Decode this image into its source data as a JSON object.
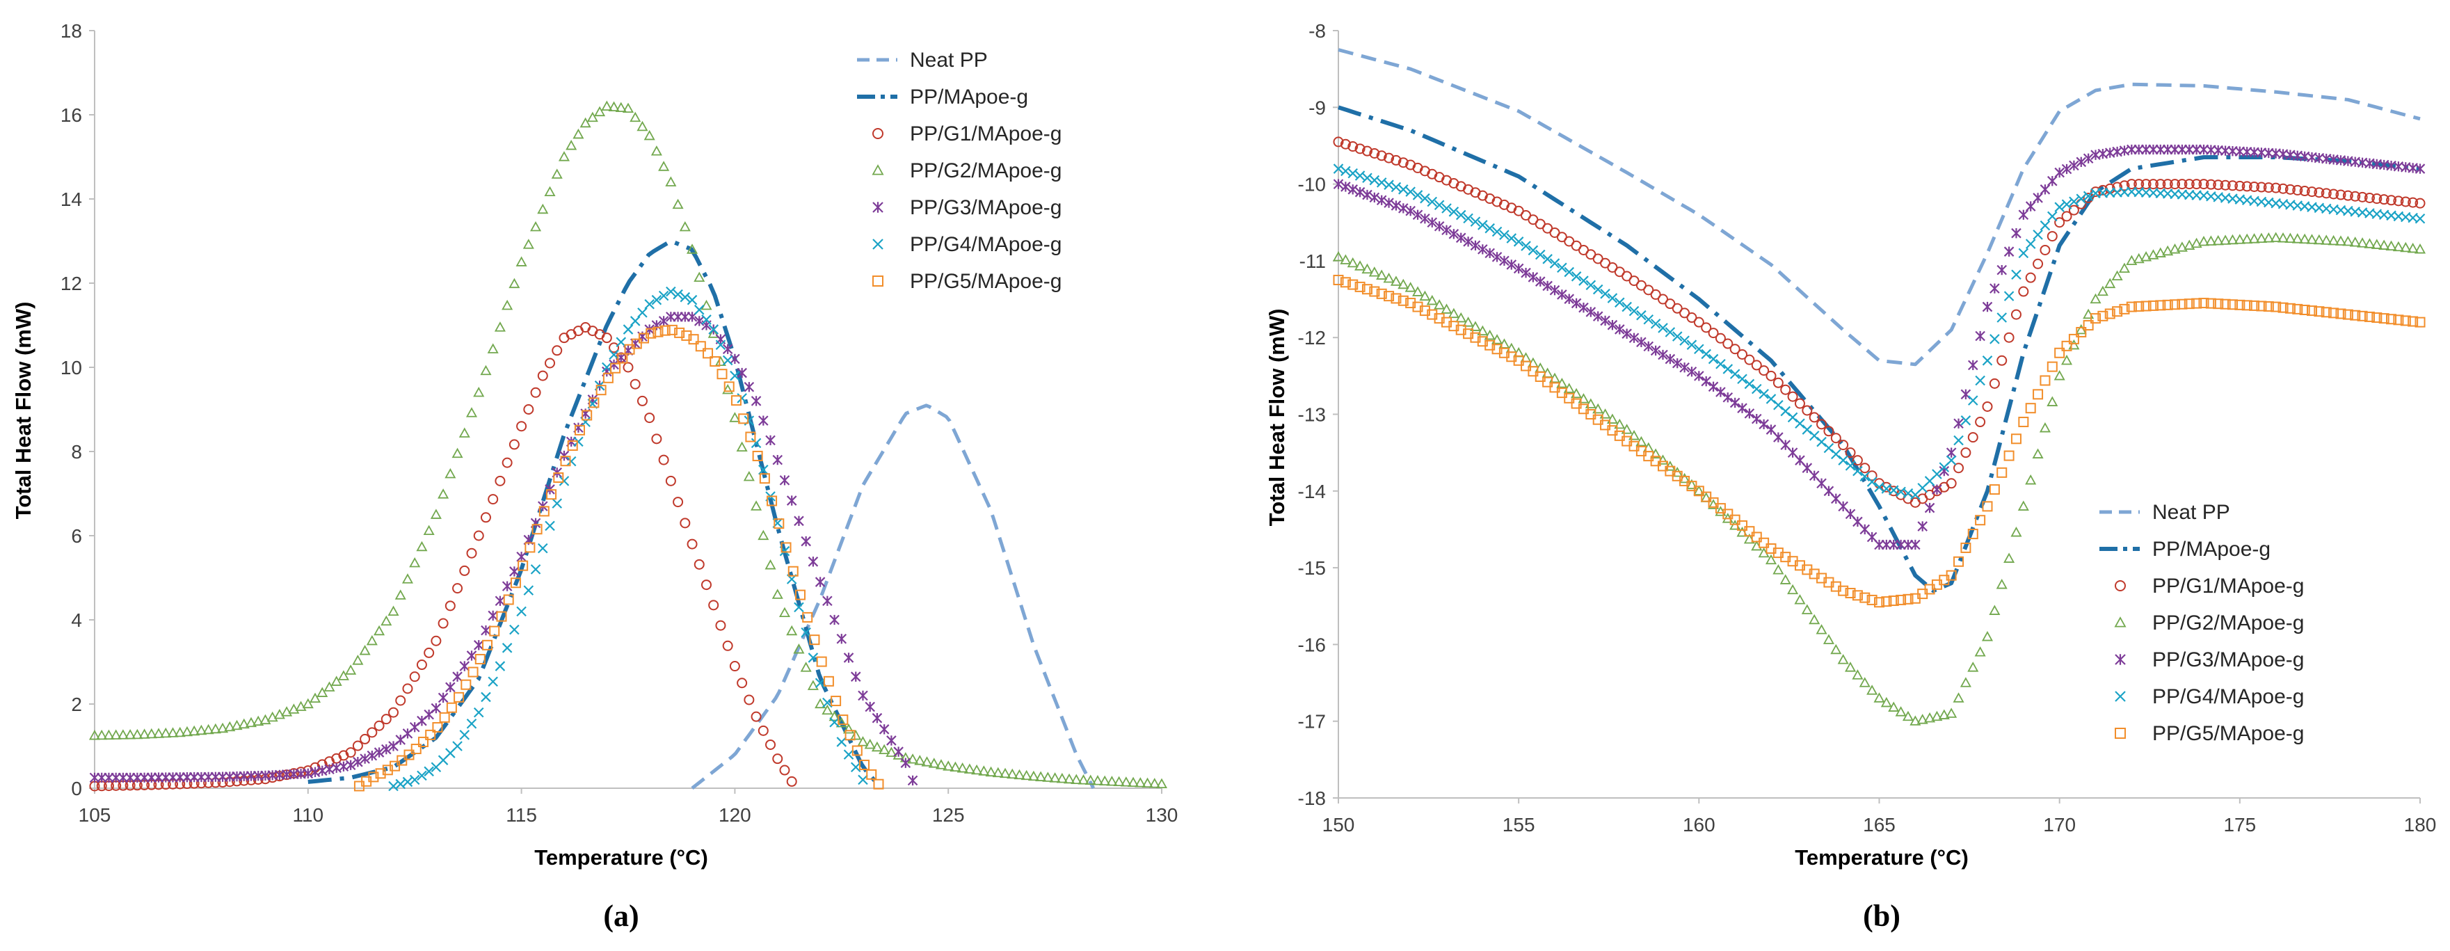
{
  "chart_data": [
    {
      "type": "scatter",
      "panel": "left",
      "caption": "(a)",
      "xlabel": "Temperature (°C)",
      "ylabel": "Total Heat Flow (mW)",
      "xlim": [
        105,
        130
      ],
      "ylim": [
        0,
        18
      ],
      "xticks": [
        105,
        110,
        115,
        120,
        125,
        130
      ],
      "yticks": [
        0,
        2,
        4,
        6,
        8,
        10,
        12,
        14,
        16,
        18
      ],
      "legend_position": "top-right",
      "series": [
        {
          "name": "Neat PP",
          "style": "dashed",
          "color": "#7EA6D4",
          "x": [
            119,
            120,
            121,
            122,
            123,
            124,
            124.5,
            125,
            126,
            127,
            128,
            128.4
          ],
          "y": [
            0,
            0.8,
            2.2,
            4.5,
            7.2,
            8.9,
            9.1,
            8.8,
            6.6,
            3.4,
            0.8,
            0
          ]
        },
        {
          "name": "PP/MApoe-g",
          "style": "dashdot",
          "color": "#1F6FA7",
          "x": [
            110,
            111,
            112,
            113,
            114,
            115,
            116,
            117,
            117.5,
            118,
            118.5,
            119,
            119.5,
            120,
            121,
            122,
            123,
            123.3
          ],
          "y": [
            0.15,
            0.25,
            0.5,
            1.2,
            2.6,
            5.2,
            8.4,
            11.0,
            12.0,
            12.7,
            13.0,
            12.8,
            11.8,
            10.2,
            6.2,
            2.6,
            0.5,
            0.15
          ]
        },
        {
          "name": "PP/G1/MApoe-g",
          "style": "circle",
          "color": "#C0392B",
          "x": [
            105,
            106,
            107,
            108,
            109,
            110,
            111,
            112,
            113,
            114,
            115,
            115.5,
            116,
            116.5,
            117,
            117.5,
            118,
            119,
            120,
            120.5,
            121,
            121.4
          ],
          "y": [
            0.05,
            0.07,
            0.1,
            0.14,
            0.22,
            0.42,
            0.85,
            1.8,
            3.5,
            6.0,
            8.6,
            9.8,
            10.7,
            10.95,
            10.7,
            10.0,
            8.8,
            5.8,
            2.9,
            1.7,
            0.7,
            0.05
          ]
        },
        {
          "name": "PP/G2/MApoe-g",
          "style": "triangle",
          "color": "#72A84E",
          "x": [
            105,
            106,
            107,
            108,
            109,
            110,
            111,
            112,
            113,
            114,
            115,
            116,
            116.5,
            117,
            117.5,
            118,
            118.5,
            119,
            120,
            121,
            122,
            123,
            124,
            125,
            126,
            127,
            128,
            129,
            130
          ],
          "y": [
            1.25,
            1.27,
            1.32,
            1.42,
            1.62,
            2.0,
            2.8,
            4.2,
            6.5,
            9.4,
            12.5,
            15.0,
            15.8,
            16.2,
            16.15,
            15.5,
            14.4,
            12.8,
            8.8,
            4.6,
            2.0,
            1.1,
            0.72,
            0.52,
            0.38,
            0.28,
            0.2,
            0.15,
            0.1
          ]
        },
        {
          "name": "PP/G3/MApoe-g",
          "style": "star",
          "color": "#7D3C98",
          "x": [
            105,
            106,
            107,
            108,
            109,
            110,
            111,
            112,
            113,
            114,
            115,
            116,
            117,
            118,
            118.5,
            119,
            119.5,
            120,
            120.5,
            121,
            122,
            123,
            124,
            124.2
          ],
          "y": [
            0.25,
            0.25,
            0.26,
            0.27,
            0.3,
            0.35,
            0.55,
            1.0,
            1.9,
            3.4,
            5.5,
            7.9,
            9.9,
            10.9,
            11.2,
            11.2,
            10.9,
            10.2,
            9.2,
            7.8,
            4.9,
            2.2,
            0.6,
            0.1
          ]
        },
        {
          "name": "PP/G4/MApoe-g",
          "style": "x",
          "color": "#1BA3C6",
          "x": [
            112,
            112.5,
            113,
            113.5,
            114,
            114.5,
            115,
            115.5,
            116,
            116.5,
            117,
            117.5,
            118,
            118.5,
            119,
            119.5,
            120,
            120.5,
            121,
            121.5,
            122,
            122.5,
            123
          ],
          "y": [
            0.05,
            0.2,
            0.5,
            1.0,
            1.8,
            2.9,
            4.2,
            5.7,
            7.3,
            8.7,
            10.0,
            10.9,
            11.5,
            11.8,
            11.6,
            10.9,
            9.8,
            8.2,
            6.3,
            4.3,
            2.5,
            1.1,
            0.2
          ]
        },
        {
          "name": "PP/G5/MApoe-g",
          "style": "square",
          "color": "#F28E2B",
          "x": [
            111.2,
            111.5,
            112,
            112.5,
            113,
            113.5,
            114,
            114.5,
            115,
            115.5,
            116,
            116.5,
            117,
            117.5,
            118,
            118.5,
            119,
            119.5,
            120,
            120.5,
            121,
            121.5,
            122,
            122.5,
            123,
            123.4
          ],
          "y": [
            0.05,
            0.25,
            0.5,
            0.9,
            1.4,
            2.1,
            3.0,
            4.0,
            5.2,
            6.5,
            7.7,
            8.8,
            9.7,
            10.4,
            10.8,
            10.9,
            10.7,
            10.2,
            9.3,
            8.0,
            6.4,
            4.7,
            3.1,
            1.7,
            0.6,
            0.05
          ]
        }
      ]
    },
    {
      "type": "scatter",
      "panel": "right",
      "caption": "(b)",
      "xlabel": "Temperature (°C)",
      "ylabel": "Total Heat Flow (mW)",
      "xlim": [
        150,
        180
      ],
      "ylim": [
        -18,
        -8
      ],
      "xticks": [
        150,
        155,
        160,
        165,
        170,
        175,
        180
      ],
      "yticks": [
        -8,
        -9,
        -10,
        -11,
        -12,
        -13,
        -14,
        -15,
        -16,
        -17,
        -18
      ],
      "legend_position": "bottom-right",
      "series": [
        {
          "name": "Neat PP",
          "style": "dashed",
          "color": "#7EA6D4",
          "x": [
            150,
            152,
            155,
            158,
            160,
            162,
            164,
            165,
            166,
            167,
            168,
            169,
            170,
            171,
            172,
            174,
            176,
            178,
            180
          ],
          "y": [
            -8.25,
            -8.5,
            -9.05,
            -9.85,
            -10.4,
            -11.05,
            -11.9,
            -12.3,
            -12.35,
            -11.9,
            -10.9,
            -9.8,
            -9.05,
            -8.78,
            -8.7,
            -8.72,
            -8.8,
            -8.9,
            -9.15
          ]
        },
        {
          "name": "PP/MApoe-g",
          "style": "dashdot",
          "color": "#1F6FA7",
          "x": [
            150,
            152,
            155,
            158,
            160,
            162,
            164,
            165,
            166,
            166.5,
            167,
            168,
            169,
            170,
            171,
            172,
            174,
            176,
            178,
            180
          ],
          "y": [
            -9.0,
            -9.3,
            -9.9,
            -10.8,
            -11.5,
            -12.3,
            -13.4,
            -14.2,
            -15.1,
            -15.3,
            -15.2,
            -14.0,
            -12.2,
            -10.8,
            -10.1,
            -9.8,
            -9.65,
            -9.65,
            -9.7,
            -9.8
          ]
        },
        {
          "name": "PP/G1/MApoe-g",
          "style": "circle",
          "color": "#C0392B",
          "x": [
            150,
            152,
            155,
            158,
            160,
            162,
            164,
            165,
            166,
            167,
            168,
            169,
            170,
            171,
            172,
            174,
            176,
            178,
            180
          ],
          "y": [
            -9.45,
            -9.75,
            -10.35,
            -11.2,
            -11.8,
            -12.5,
            -13.4,
            -13.9,
            -14.15,
            -13.9,
            -12.9,
            -11.4,
            -10.5,
            -10.1,
            -10.0,
            -10.0,
            -10.05,
            -10.15,
            -10.25
          ]
        },
        {
          "name": "PP/G2/MApoe-g",
          "style": "triangle",
          "color": "#72A84E",
          "x": [
            150,
            152,
            155,
            158,
            160,
            162,
            164,
            165,
            166,
            167,
            168,
            169,
            170,
            171,
            172,
            174,
            176,
            178,
            180
          ],
          "y": [
            -10.95,
            -11.35,
            -12.2,
            -13.2,
            -14.0,
            -14.9,
            -16.2,
            -16.7,
            -17.0,
            -16.9,
            -15.9,
            -14.2,
            -12.5,
            -11.5,
            -11.0,
            -10.75,
            -10.7,
            -10.75,
            -10.85
          ]
        },
        {
          "name": "PP/G3/MApoe-g",
          "style": "star",
          "color": "#7D3C98",
          "x": [
            150,
            152,
            155,
            158,
            160,
            162,
            164,
            165,
            166,
            167,
            168,
            169,
            170,
            171,
            172,
            174,
            176,
            178,
            180
          ],
          "y": [
            -10.0,
            -10.35,
            -11.1,
            -11.95,
            -12.5,
            -13.2,
            -14.2,
            -14.7,
            -14.7,
            -13.5,
            -11.6,
            -10.4,
            -9.85,
            -9.62,
            -9.55,
            -9.55,
            -9.6,
            -9.7,
            -9.8
          ]
        },
        {
          "name": "PP/G4/MApoe-g",
          "style": "x",
          "color": "#1BA3C6",
          "x": [
            150,
            152,
            155,
            158,
            160,
            162,
            164,
            165,
            166,
            167,
            168,
            169,
            170,
            171,
            172,
            174,
            176,
            178,
            180
          ],
          "y": [
            -9.8,
            -10.1,
            -10.75,
            -11.6,
            -12.15,
            -12.8,
            -13.6,
            -13.95,
            -14.05,
            -13.6,
            -12.3,
            -10.9,
            -10.3,
            -10.12,
            -10.1,
            -10.15,
            -10.25,
            -10.35,
            -10.45
          ]
        },
        {
          "name": "PP/G5/MApoe-g",
          "style": "square",
          "color": "#F28E2B",
          "x": [
            150,
            152,
            155,
            158,
            160,
            162,
            164,
            165,
            166,
            167,
            168,
            169,
            170,
            171,
            172,
            174,
            176,
            178,
            180
          ],
          "y": [
            -11.25,
            -11.55,
            -12.3,
            -13.35,
            -14.0,
            -14.75,
            -15.3,
            -15.45,
            -15.4,
            -15.1,
            -14.2,
            -13.1,
            -12.2,
            -11.75,
            -11.6,
            -11.55,
            -11.6,
            -11.7,
            -11.8
          ]
        }
      ]
    }
  ]
}
